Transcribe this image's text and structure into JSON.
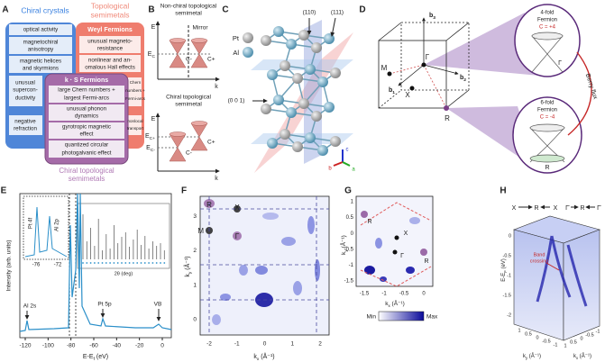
{
  "a": {
    "letter": "A",
    "left_title": "Chiral crystals",
    "right_title": [
      "Topological",
      "semimetals"
    ],
    "left_items": [
      [
        "optical activity"
      ],
      [
        "magnetochiral",
        "anisotropy"
      ],
      [
        "magnetic helices",
        "and skyrmions"
      ],
      [
        "unusual",
        "supercon-",
        "ductivity"
      ],
      [
        "negative",
        "refraction"
      ]
    ],
    "right_header": "Weyl Fermions",
    "right_items": [
      [
        "unusual magneto-",
        "resistance"
      ],
      [
        "nonlinear and an-",
        "omalous Hall effects"
      ],
      [
        "Chern",
        "numbers +",
        "Fermi-arcs"
      ],
      [
        "nonlocal",
        "transport"
      ]
    ],
    "mid_header": "k · S Fermions",
    "mid_items": [
      [
        "large Chern numbers +",
        "largest Fermi-arcs"
      ],
      [
        "unusual phonon",
        "dynamics"
      ],
      [
        "gyrotropic magnetic",
        "effect"
      ],
      [
        "quantized circular",
        "photogalvanic effect"
      ]
    ],
    "bottom_title": [
      "Chiral topological",
      "semimetals"
    ]
  },
  "b": {
    "letter": "B",
    "top_title": [
      "Non-chiral topological",
      "semimetal"
    ],
    "top_axis_e": "E",
    "top_ec": [
      "E",
      "C"
    ],
    "mirror": "Mirror",
    "top_cm": "C-",
    "top_cp": "C+",
    "top_axis_k": "k",
    "bottom_title": [
      "Chiral topological",
      "semimetal"
    ],
    "bottom_axis_e": "E",
    "bottom_ecp": [
      "E",
      "C+"
    ],
    "bottom_ecm": [
      "E",
      "C-"
    ],
    "bottom_cm": "C-",
    "bottom_cp": "C+",
    "bottom_axis_k": "k"
  },
  "c": {
    "letter": "C",
    "pt": "Pt",
    "al": "Al",
    "plane_110": "(110)",
    "plane_111": "(111)",
    "plane_001": "(0 0 1)",
    "axis_c": "c",
    "axis_b": "b",
    "axis_a": "a"
  },
  "d": {
    "letter": "D",
    "b3": [
      "b",
      "3"
    ],
    "b1": [
      "b",
      "1"
    ],
    "b2": [
      "b",
      "2"
    ],
    "m": "M",
    "gamma": "Γ",
    "x": "X",
    "r": "R",
    "upper": [
      "4-fold",
      "Fermion",
      "C = +4"
    ],
    "upper_point": "Γ",
    "lower": [
      "6-fold",
      "Fermion",
      "C = -4"
    ],
    "lower_point": "R",
    "berry_flux": "Berry flux"
  },
  "e": {
    "letter": "E",
    "y_label": "Intensity (arb. units)",
    "x_label": [
      "E-E",
      "f",
      " (eV)"
    ],
    "x_ticks": [
      "-120",
      "-100",
      "-80",
      "-60",
      "-40",
      "-20",
      "0"
    ],
    "al2s": "Al 2s",
    "pt5p": "Pt 5p",
    "vb": "VB",
    "pt4f": "Pt 4f",
    "al2p": "Al 2p",
    "inset_ticks": [
      "-76",
      "-72"
    ],
    "inset_x_label": "2θ (deg)"
  },
  "f": {
    "letter": "F",
    "y_label": [
      "k",
      "y",
      " (Å⁻¹)"
    ],
    "x_label": [
      "k",
      "x",
      " (Å⁻¹)"
    ],
    "y_ticks": [
      "0",
      "1",
      "2",
      "3"
    ],
    "x_ticks": [
      "-2",
      "-1",
      "0",
      "1",
      "2"
    ],
    "points": [
      "R",
      "X",
      "M",
      "Γ"
    ]
  },
  "g": {
    "letter": "G",
    "y_label": [
      "k",
      "y",
      " (Å⁻¹)"
    ],
    "x_label": [
      "k",
      "x",
      " (Å⁻¹)"
    ],
    "y_ticks": [
      "1",
      "0.5",
      "0",
      "-0.5",
      "-1",
      "-1.5"
    ],
    "x_ticks": [
      "-1.5",
      "-1",
      "-0.5",
      "0"
    ],
    "points": [
      "R",
      "X",
      "Γ",
      "R"
    ],
    "colorbar": [
      "Min",
      "Max"
    ]
  },
  "h": {
    "letter": "H",
    "path": [
      "X",
      "R",
      "X",
      "Γ̄",
      "R",
      "Γ̄"
    ],
    "band_crossing": [
      "Band",
      "crossing"
    ],
    "y_label": [
      "E-E",
      "F",
      " (eV)"
    ],
    "y_ticks": [
      "0",
      "-0.5",
      "-1",
      "-1.5",
      "-2"
    ],
    "ky_ticks": [
      "1",
      "0.5",
      "0",
      "-0.5",
      "-1"
    ],
    "kx_ticks": [
      "1",
      "0.5",
      "0",
      "-0.5",
      "-1"
    ],
    "ky_label": [
      "k",
      "y",
      " (Å⁻¹)"
    ],
    "kx_label": [
      "k",
      "x",
      " (Å⁻¹)"
    ]
  }
}
